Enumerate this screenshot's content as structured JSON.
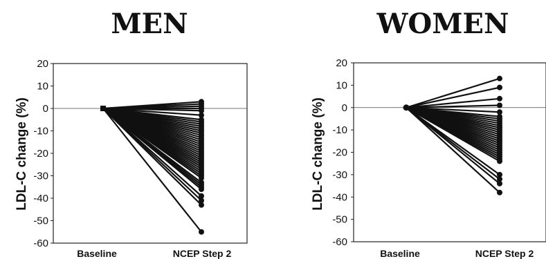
{
  "chart_data": [
    {
      "type": "line",
      "title": "MEN",
      "ylabel": "LDL-C change (%)",
      "categories": [
        "Baseline",
        "NCEP Step 2"
      ],
      "ylim": [
        -60,
        20
      ],
      "yticks": [
        20,
        10,
        0,
        -10,
        -20,
        -30,
        -40,
        -50,
        -60
      ],
      "baseline_value": 0,
      "step2_values": [
        3,
        2,
        1,
        0,
        -1,
        -3,
        -5,
        -6,
        -7,
        -8,
        -9,
        -10,
        -11,
        -12,
        -13,
        -14,
        -15,
        -16,
        -17,
        -18,
        -19,
        -20,
        -21,
        -22,
        -23,
        -24,
        -25,
        -26,
        -27,
        -28,
        -29,
        -30,
        -31,
        -33,
        -34,
        -35,
        -36,
        -39,
        -41,
        -43,
        -55
      ]
    },
    {
      "type": "line",
      "title": "WOMEN",
      "ylabel": "LDL-C change (%)",
      "categories": [
        "Baseline",
        "NCEP Step 2"
      ],
      "ylim": [
        -60,
        20
      ],
      "yticks": [
        20,
        10,
        0,
        -10,
        -20,
        -30,
        -40,
        -50,
        -60
      ],
      "baseline_value": 0,
      "step2_values": [
        13,
        9,
        4,
        1,
        -2,
        -4,
        -5,
        -6,
        -7,
        -8,
        -9,
        -10,
        -11,
        -12,
        -13,
        -14,
        -15,
        -16,
        -17,
        -18,
        -19,
        -20,
        -21,
        -22,
        -23,
        -24,
        -30,
        -32,
        -34,
        -38
      ]
    }
  ]
}
